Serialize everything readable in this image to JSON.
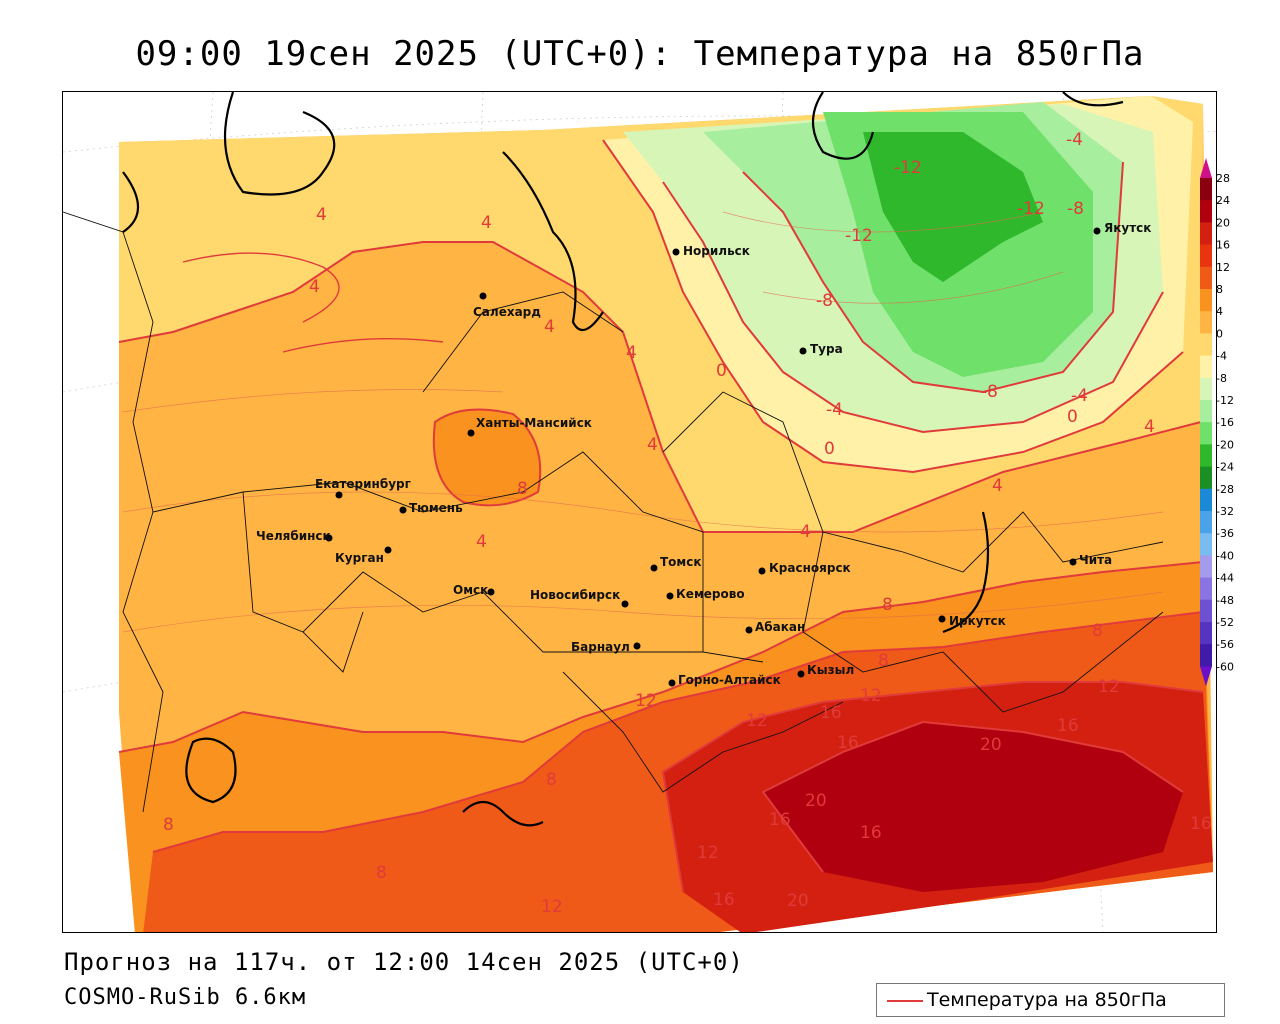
{
  "title": "09:00 19сен 2025 (UTC+0): Температура на 850гПа",
  "footer": {
    "forecast": "Прогноз на 117ч. от 12:00 14сен 2025 (UTC+0)",
    "model": "COSMO-RuSib 6.6км"
  },
  "legend": {
    "label": "Температура на 850гПа",
    "color": "#e03a3a"
  },
  "color_scale": {
    "levels": [
      "28",
      "24",
      "20",
      "16",
      "12",
      "8",
      "4",
      "0",
      "-4",
      "-8",
      "-12",
      "-16",
      "-20",
      "-24",
      "-28",
      "-32",
      "-36",
      "-40",
      "-44",
      "-48",
      "-52",
      "-56",
      "-60"
    ],
    "colors": [
      "#8b0010",
      "#b00010",
      "#d42010",
      "#e83510",
      "#f05a18",
      "#f9921f",
      "#ffb444",
      "#ffd86e",
      "#fff2a8",
      "#d8f5b8",
      "#a7ee9e",
      "#6fe06a",
      "#2fb82c",
      "#1a8f24",
      "#1a8ad6",
      "#4aa2e8",
      "#79bcf0",
      "#a59bec",
      "#8a74e2",
      "#6e50d2",
      "#5535c0",
      "#3f1ba8",
      "#e05aa8"
    ]
  },
  "cities": [
    {
      "name": "Норильск"
    },
    {
      "name": "Якутск"
    },
    {
      "name": "Салехард"
    },
    {
      "name": "Тура"
    },
    {
      "name": "Ханты-Мансийск"
    },
    {
      "name": "Екатеринбург"
    },
    {
      "name": "Тюмень"
    },
    {
      "name": "Челябинск"
    },
    {
      "name": "Курган"
    },
    {
      "name": "Омск"
    },
    {
      "name": "Томск"
    },
    {
      "name": "Новосибирск"
    },
    {
      "name": "Кемерово"
    },
    {
      "name": "Красноярск"
    },
    {
      "name": "Абакан"
    },
    {
      "name": "Барнаул"
    },
    {
      "name": "Горно-Алтайск"
    },
    {
      "name": "Кызыл"
    },
    {
      "name": "Иркутск"
    },
    {
      "name": "Чита"
    }
  ],
  "isotherm_labels": [
    "4",
    "4",
    "4",
    "4",
    "4",
    "4",
    "4",
    "4",
    "4",
    "4",
    "0",
    "0",
    "0",
    "-4",
    "-4",
    "-4",
    "-8",
    "-8",
    "-8",
    "-12",
    "-12",
    "-12",
    "8",
    "8",
    "8",
    "8",
    "8",
    "8",
    "8",
    "12",
    "12",
    "12",
    "12",
    "12",
    "12",
    "16",
    "16",
    "16",
    "16",
    "16",
    "16",
    "16",
    "20",
    "20",
    "20"
  ]
}
